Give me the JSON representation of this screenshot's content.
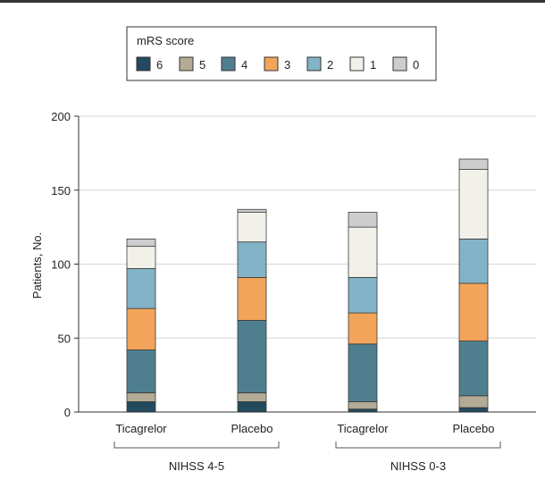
{
  "chart_data": {
    "type": "bar",
    "stacked": true,
    "title": "",
    "xlabel": "",
    "ylabel": "Patients, No.",
    "ylim": [
      0,
      200
    ],
    "yticks": [
      0,
      50,
      100,
      150,
      200
    ],
    "grid": "horizontal",
    "legend": {
      "title": "mRS score",
      "placement": "top-left",
      "entries": [
        "6",
        "5",
        "4",
        "3",
        "2",
        "1",
        "0"
      ]
    },
    "categories": [
      "Ticagrelor",
      "Placebo",
      "Ticagrelor",
      "Placebo"
    ],
    "groups": [
      {
        "label": "NIHSS 4-5",
        "categories": [
          0,
          1
        ]
      },
      {
        "label": "NIHSS 0-3",
        "categories": [
          2,
          3
        ]
      }
    ],
    "series": [
      {
        "name": "6",
        "color": "#234a5d",
        "values": [
          7,
          7,
          2,
          3
        ]
      },
      {
        "name": "5",
        "color": "#b3ab96",
        "values": [
          6,
          6,
          5,
          8
        ]
      },
      {
        "name": "4",
        "color": "#4f7f8e",
        "values": [
          29,
          49,
          39,
          37
        ]
      },
      {
        "name": "3",
        "color": "#f2a45a",
        "values": [
          28,
          29,
          21,
          39
        ]
      },
      {
        "name": "2",
        "color": "#82b3c6",
        "values": [
          27,
          24,
          24,
          30
        ]
      },
      {
        "name": "1",
        "color": "#f1f1e9",
        "values": [
          15,
          20,
          34,
          47
        ]
      },
      {
        "name": "0",
        "color": "#cdcdcd",
        "values": [
          5,
          2,
          10,
          7
        ]
      }
    ]
  }
}
